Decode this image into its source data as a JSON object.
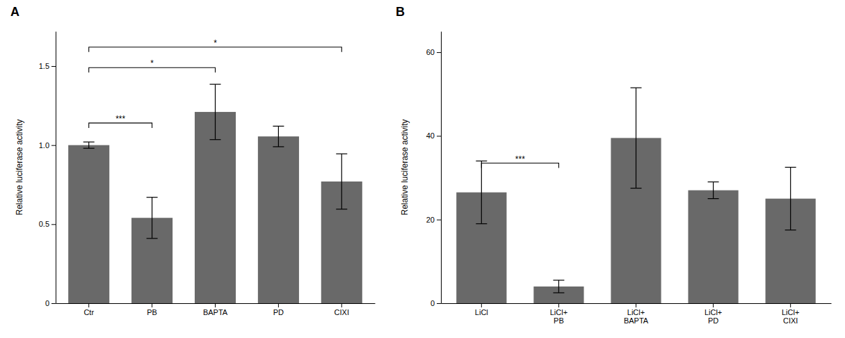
{
  "chart_data": [
    {
      "type": "bar",
      "title": "A",
      "categories": [
        "Ctr",
        "PB",
        "BAPTA",
        "PD",
        "CIXI"
      ],
      "values": [
        1.0,
        0.54,
        1.21,
        1.055,
        0.77
      ],
      "errors": [
        0.02,
        0.13,
        0.175,
        0.065,
        0.175
      ],
      "color": "#696969",
      "y_label": "Relative luciferase activity",
      "ylim": [
        0,
        1.72
      ],
      "yticks": [
        0,
        0.5,
        {
          "value": 1.0,
          "label": "1.0"
        },
        1.5
      ],
      "grid": false,
      "annotations": [
        {
          "text": "***",
          "x1": "Ctr",
          "x2": "PB",
          "y": 1.14
        },
        {
          "text": "*",
          "x1": "Ctr",
          "x2": "BAPTA",
          "y": 1.49
        },
        {
          "text": "*",
          "x1": "Ctr",
          "x2": "CIXI",
          "y": 1.62
        }
      ]
    },
    {
      "type": "bar",
      "title": "B",
      "categories": [
        "LiCl",
        "LiCl+\nPB",
        "LiCl+\nBAPTA",
        "LiCl+\nPD",
        "LiCl+\nCIXI"
      ],
      "values": [
        26.5,
        4.0,
        39.5,
        27.0,
        25.0
      ],
      "errors": [
        7.5,
        1.5,
        12.0,
        2.0,
        7.5
      ],
      "color": "#696969",
      "y_label": "Relative luciferase activity",
      "ylim": [
        0,
        65
      ],
      "yticks": [
        0,
        20,
        40,
        60
      ],
      "grid": false,
      "annotations": [
        {
          "text": "***",
          "x1": "LiCl",
          "x2": "LiCl+\nPB",
          "y": 33.5
        }
      ]
    }
  ]
}
